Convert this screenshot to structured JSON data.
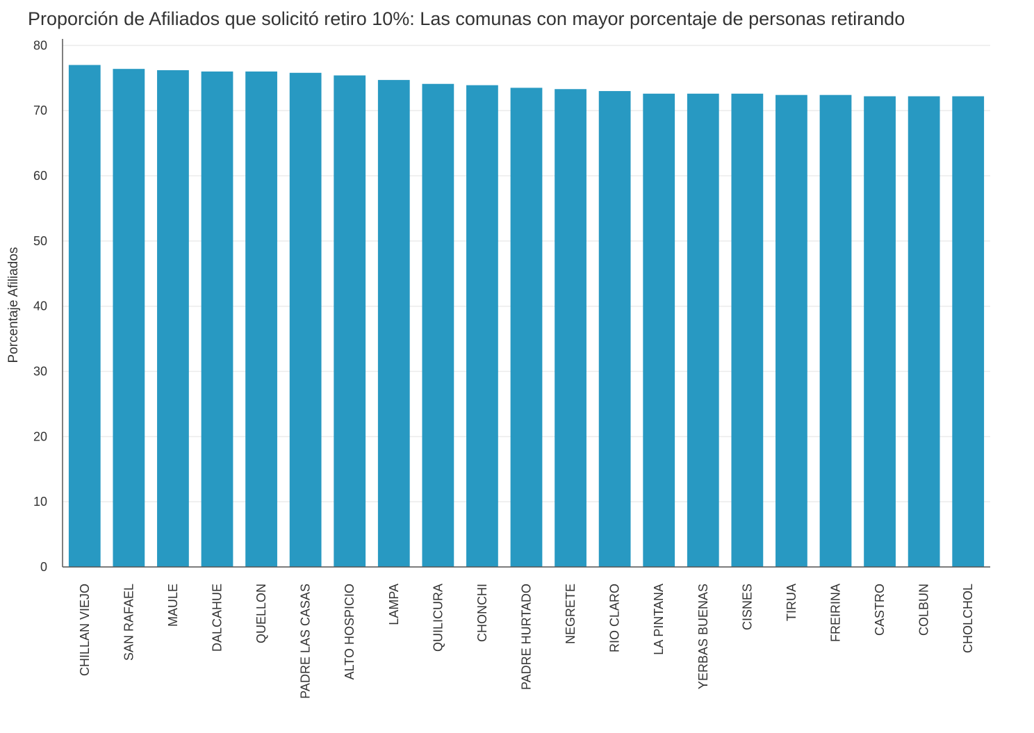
{
  "chart_data": {
    "type": "bar",
    "title": "Proporción de Afiliados que solicitó retiro 10%: Las comunas con mayor porcentaje de personas retirando",
    "xlabel": "",
    "ylabel": "Porcentaje Afiliados",
    "categories": [
      "CHILLAN VIEJO",
      "SAN RAFAEL",
      "MAULE",
      "DALCAHUE",
      "QUELLON",
      "PADRE LAS CASAS",
      "ALTO HOSPICIO",
      "LAMPA",
      "QUILICURA",
      "CHONCHI",
      "PADRE HURTADO",
      "NEGRETE",
      "RIO CLARO",
      "LA PINTANA",
      "YERBAS BUENAS",
      "CISNES",
      "TIRUA",
      "FREIRINA",
      "CASTRO",
      "COLBUN",
      "CHOLCHOL"
    ],
    "values": [
      77.0,
      76.4,
      76.2,
      76.0,
      76.0,
      75.8,
      75.4,
      74.7,
      74.1,
      73.9,
      73.5,
      73.3,
      73.0,
      72.6,
      72.6,
      72.6,
      72.4,
      72.4,
      72.2,
      72.2,
      72.2
    ],
    "ylim": [
      0,
      81
    ],
    "yticks": [
      0,
      10,
      20,
      30,
      40,
      50,
      60,
      70,
      80
    ],
    "grid": true,
    "bar_color": "#2899c2",
    "grid_color": "#ebebeb",
    "axis_color": "#555555"
  }
}
